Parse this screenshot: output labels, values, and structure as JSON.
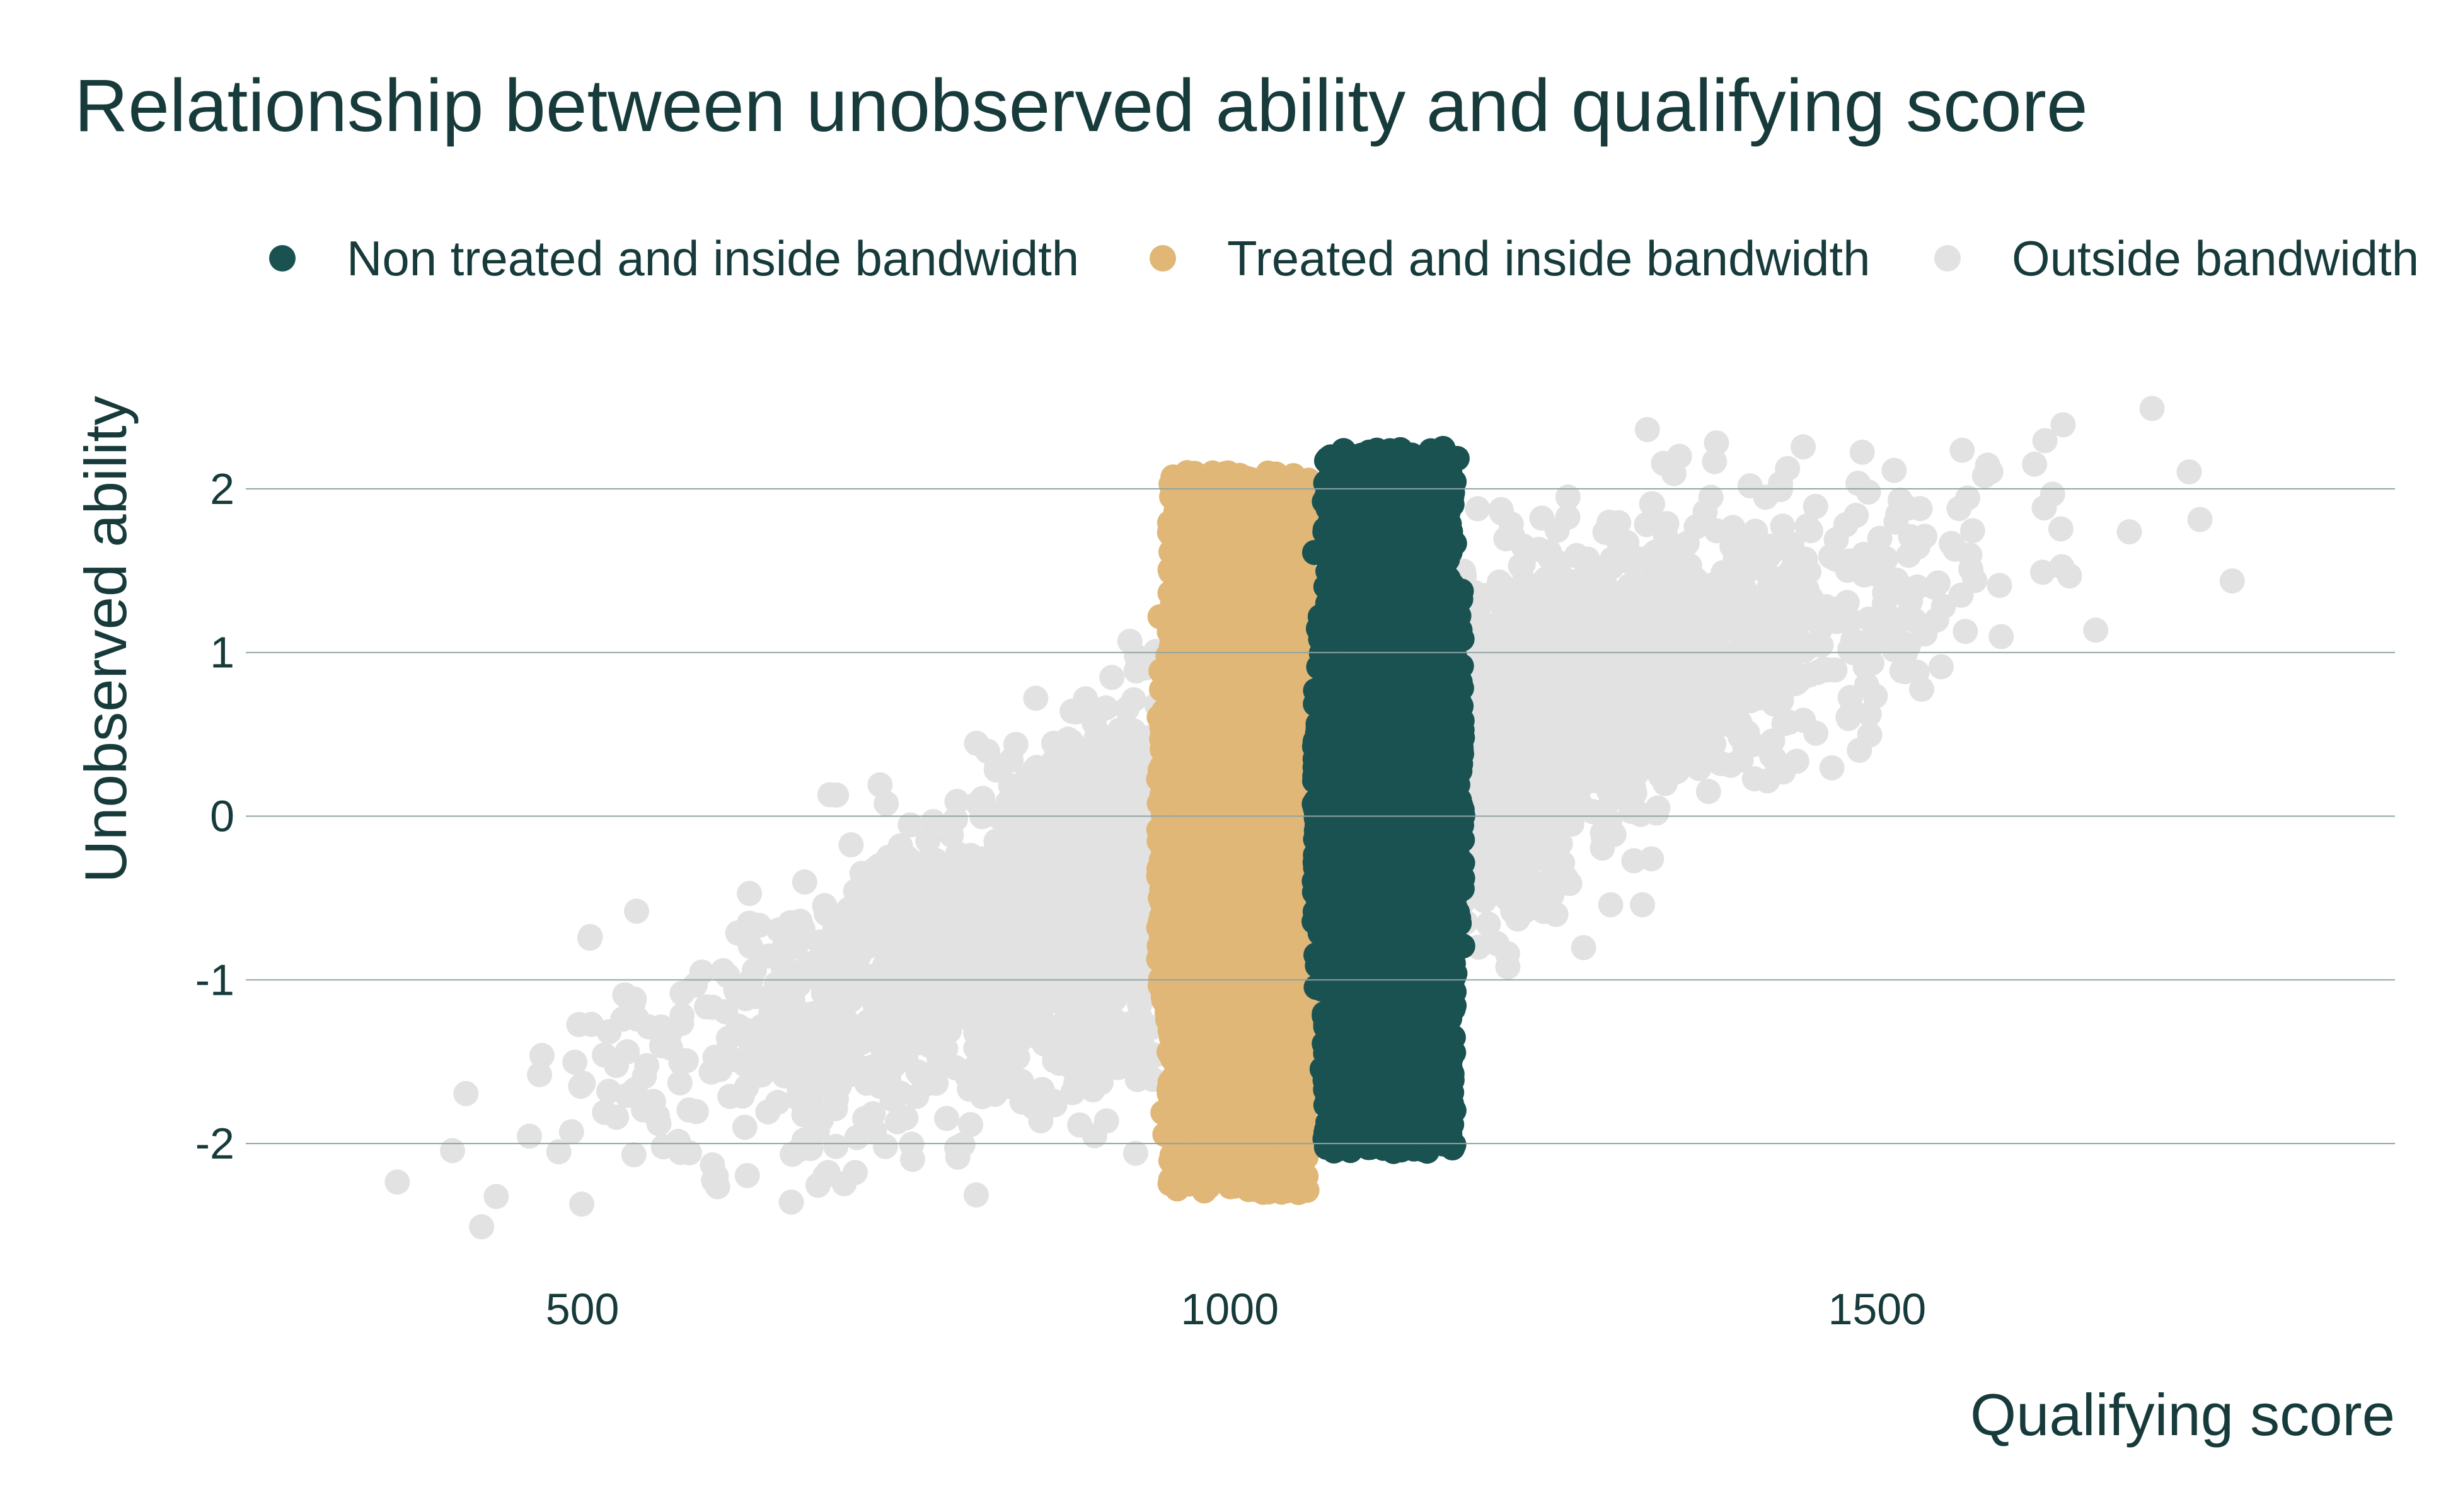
{
  "chart_data": {
    "type": "scatter",
    "title": "Relationship between unobserved ability and qualifying score",
    "xlabel": "Qualifying score",
    "ylabel": "Unobserved ability",
    "xlim": [
      240,
      1900
    ],
    "ylim": [
      -2.75,
      2.6
    ],
    "x_ticks": [
      500,
      1000,
      1500
    ],
    "y_ticks": [
      2,
      1,
      0,
      -1,
      -2
    ],
    "grid": "horizontal",
    "legend_position": "top",
    "series": [
      {
        "name": "Non treated and inside bandwidth",
        "color": "#1a5252",
        "x_range": [
          1065,
          1180
        ],
        "y_range": [
          -2.25,
          2.5
        ]
      },
      {
        "name": "Treated and inside bandwidth",
        "color": "#e0b777",
        "x_range": [
          945,
          1065
        ],
        "y_range": [
          -2.4,
          2.25
        ]
      },
      {
        "name": "Outside bandwidth",
        "color": "#e2e2e2",
        "x_range": [
          310,
          1860
        ],
        "y_range": [
          -2.5,
          2.5
        ]
      }
    ]
  }
}
